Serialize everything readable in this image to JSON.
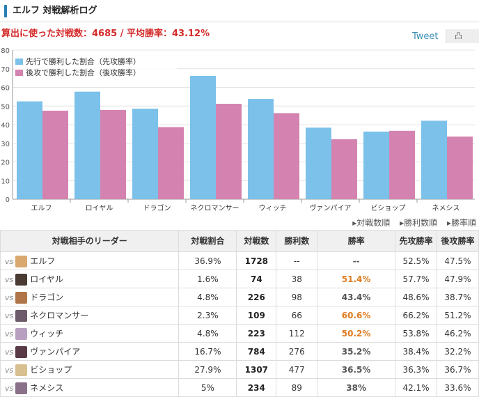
{
  "header": {
    "title": "エルフ 対戦解析ログ"
  },
  "summary": "算出に使った対戦数：4685 / 平均勝率：43.12%",
  "tweet": {
    "label": "Tweet",
    "button": "凸"
  },
  "chart_data": {
    "type": "bar",
    "categories": [
      "エルフ",
      "ロイヤル",
      "ドラゴン",
      "ネクロマンサー",
      "ウィッチ",
      "ヴァンパイア",
      "ビショップ",
      "ネメシス"
    ],
    "series": [
      {
        "name": "先行で勝利した割合（先攻勝率）",
        "color": "#7cc1ea",
        "values": [
          52.5,
          57.7,
          48.6,
          66.2,
          53.8,
          38.4,
          36.3,
          42.1
        ]
      },
      {
        "name": "後攻で勝利した割合（後攻勝率）",
        "color": "#d483b0",
        "values": [
          47.5,
          47.9,
          38.7,
          51.2,
          46.2,
          32.2,
          36.7,
          33.6
        ]
      }
    ],
    "yticks": [
      0,
      10,
      20,
      30,
      40,
      50,
      60,
      70,
      80
    ],
    "ylim": [
      0,
      80
    ],
    "legend": "top-left",
    "grid": true
  },
  "sort": [
    "▸対戦数順",
    "▸勝利数順",
    "▸勝率順"
  ],
  "table": {
    "headers": [
      "対戦相手のリーダー",
      "対戦割合",
      "対戦数",
      "勝利数",
      "勝率",
      "先攻勝率",
      "後攻勝率"
    ],
    "vs": "vs",
    "rows": [
      {
        "name": "エルフ",
        "ratio": "36.9%",
        "games": "1728",
        "wins": "--",
        "rate": "--",
        "first": "52.5%",
        "second": "47.5%",
        "hi": false,
        "avatar": "#d9a86e"
      },
      {
        "name": "ロイヤル",
        "ratio": "1.6%",
        "games": "74",
        "wins": "38",
        "rate": "51.4%",
        "first": "57.7%",
        "second": "47.9%",
        "hi": true,
        "avatar": "#4a3a34"
      },
      {
        "name": "ドラゴン",
        "ratio": "4.8%",
        "games": "226",
        "wins": "98",
        "rate": "43.4%",
        "first": "48.6%",
        "second": "38.7%",
        "hi": false,
        "avatar": "#b0764a"
      },
      {
        "name": "ネクロマンサー",
        "ratio": "2.3%",
        "games": "109",
        "wins": "66",
        "rate": "60.6%",
        "first": "66.2%",
        "second": "51.2%",
        "hi": true,
        "avatar": "#6d5a6a"
      },
      {
        "name": "ウィッチ",
        "ratio": "4.8%",
        "games": "223",
        "wins": "112",
        "rate": "50.2%",
        "first": "53.8%",
        "second": "46.2%",
        "hi": true,
        "avatar": "#b8a0c0"
      },
      {
        "name": "ヴァンパイア",
        "ratio": "16.7%",
        "games": "784",
        "wins": "276",
        "rate": "35.2%",
        "first": "38.4%",
        "second": "32.2%",
        "hi": false,
        "avatar": "#5a3a46"
      },
      {
        "name": "ビショップ",
        "ratio": "27.9%",
        "games": "1307",
        "wins": "477",
        "rate": "36.5%",
        "first": "36.3%",
        "second": "36.7%",
        "hi": false,
        "avatar": "#d8c090"
      },
      {
        "name": "ネメシス",
        "ratio": "5%",
        "games": "234",
        "wins": "89",
        "rate": "38%",
        "first": "42.1%",
        "second": "33.6%",
        "hi": false,
        "avatar": "#8a7088"
      }
    ]
  }
}
